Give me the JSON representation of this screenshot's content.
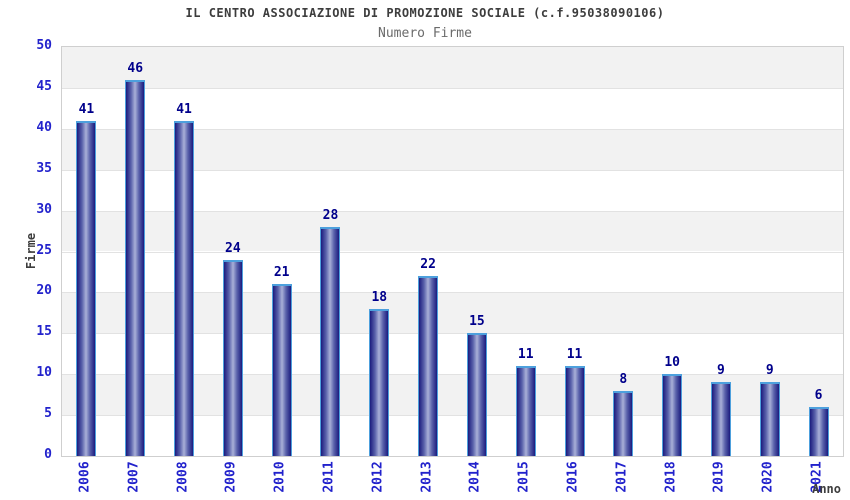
{
  "header": {
    "title": "IL CENTRO ASSOCIAZIONE DI PROMOZIONE SOCIALE (c.f.95038090106)",
    "subtitle": "Numero Firme"
  },
  "chart_data": {
    "type": "bar",
    "title": "IL CENTRO ASSOCIAZIONE DI PROMOZIONE SOCIALE (c.f.95038090106)",
    "subtitle": "Numero Firme",
    "xlabel": "Anno",
    "ylabel": "Firme",
    "categories": [
      "2006",
      "2007",
      "2008",
      "2009",
      "2010",
      "2011",
      "2012",
      "2013",
      "2014",
      "2015",
      "2016",
      "2017",
      "2018",
      "2019",
      "2020",
      "2021"
    ],
    "values": [
      41,
      46,
      41,
      24,
      21,
      28,
      18,
      22,
      15,
      11,
      11,
      8,
      10,
      9,
      9,
      6
    ],
    "ylim": [
      0,
      50
    ],
    "ytick_step": 5,
    "yticks": [
      0,
      5,
      10,
      15,
      20,
      25,
      30,
      35,
      40,
      45,
      50
    ],
    "grid": "alternating-horizontal-bands",
    "legend": "none",
    "bar_value_labels_shown": true
  },
  "colors": {
    "background": "#ffffff",
    "title_text": "#3d3d3d",
    "subtitle_text": "#6b6b6b",
    "axis_tick_text": "#2222cc",
    "value_label_text": "#00008b",
    "axis_title_text": "#3d3d3d",
    "bar_border": "#4da0dd",
    "bar_gradient_edge": "#1b1b7e",
    "bar_gradient_mid": "#5a62ab",
    "bar_gradient_center": "#a9b0d8",
    "band_gray": "#f2f2f2",
    "band_white": "#ffffff",
    "gridline": "#e2e2e2",
    "plot_border": "#cfcfcf"
  }
}
